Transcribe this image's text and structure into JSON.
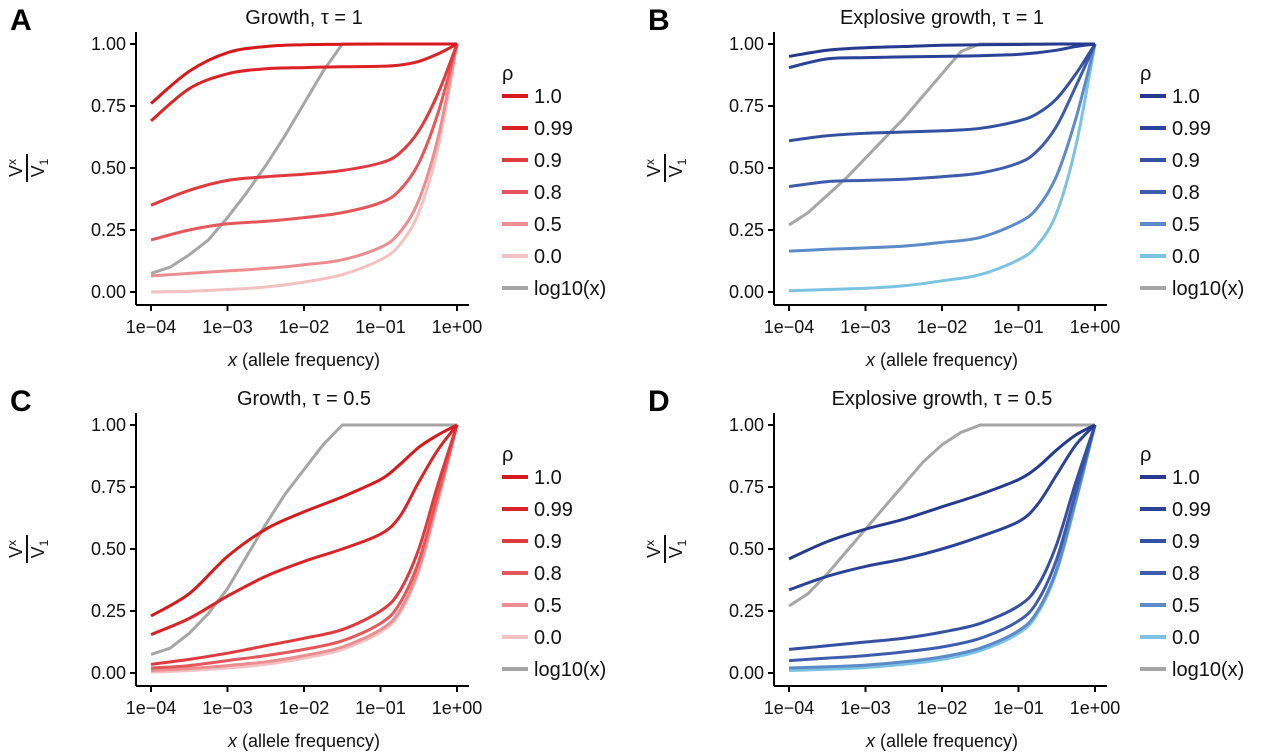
{
  "chart_data": [
    {
      "type": "line",
      "panel_label": "A",
      "title": "Growth, τ = 1",
      "xlabel_italic": "x",
      "xlabel_rest": " (allele frequency)",
      "ylabel_num": "V",
      "ylabel_num_sub": "x",
      "ylabel_den": "V",
      "ylabel_den_sub": "1",
      "xscale": "log10",
      "xlim": [
        0.0001,
        1
      ],
      "ylim": [
        0,
        1
      ],
      "xticks": [
        0.0001,
        0.001,
        0.01,
        0.1,
        1
      ],
      "xtick_labels": [
        "1e−04",
        "1e−03",
        "1e−02",
        "1e−01",
        "1e+00"
      ],
      "yticks": [
        0,
        0.25,
        0.5,
        0.75,
        1
      ],
      "ytick_labels": [
        "0.00",
        "0.25",
        "0.50",
        "0.75",
        "1.00"
      ],
      "legend_title": "ρ",
      "legend_position": "right",
      "x_log10": [
        -4,
        -3.5,
        -3,
        -2.5,
        -2,
        -1.5,
        -1,
        -0.75,
        -0.5,
        -0.25,
        0
      ],
      "series": [
        {
          "name": "1.0",
          "color": "#d7191c",
          "values": [
            0.76,
            0.89,
            0.965,
            0.99,
            0.997,
            0.999,
            1.0,
            1.0,
            1.0,
            1.0,
            1.0
          ]
        },
        {
          "name": "0.99",
          "color": "#dc2226",
          "values": [
            0.69,
            0.82,
            0.88,
            0.9,
            0.905,
            0.908,
            0.91,
            0.915,
            0.93,
            0.96,
            1.0
          ]
        },
        {
          "name": "0.9",
          "color": "#e03a3e",
          "values": [
            0.35,
            0.41,
            0.45,
            0.465,
            0.475,
            0.49,
            0.52,
            0.56,
            0.65,
            0.8,
            1.0
          ]
        },
        {
          "name": "0.8",
          "color": "#e5575a",
          "values": [
            0.21,
            0.25,
            0.275,
            0.285,
            0.3,
            0.32,
            0.36,
            0.41,
            0.52,
            0.72,
            1.0
          ]
        },
        {
          "name": "0.5",
          "color": "#ec8d8f",
          "values": [
            0.065,
            0.075,
            0.085,
            0.095,
            0.11,
            0.13,
            0.18,
            0.24,
            0.37,
            0.62,
            1.0
          ]
        },
        {
          "name": "0.0",
          "color": "#f4c1c2",
          "values": [
            0.0,
            0.003,
            0.01,
            0.02,
            0.04,
            0.07,
            0.13,
            0.19,
            0.32,
            0.58,
            1.0
          ]
        },
        {
          "name": "log10(x)",
          "color": "#a6a6a6",
          "x_log10": [
            -4,
            -3.75,
            -3.5,
            -3.25,
            -3,
            -2.75,
            -2.5,
            -2.25,
            -2,
            -1.75,
            -1.5,
            0
          ],
          "values": [
            0.075,
            0.1,
            0.15,
            0.21,
            0.3,
            0.4,
            0.51,
            0.63,
            0.76,
            0.89,
            1.0,
            1.0
          ]
        }
      ]
    },
    {
      "type": "line",
      "panel_label": "B",
      "title": "Explosive growth, τ = 1",
      "xlabel_italic": "x",
      "xlabel_rest": " (allele frequency)",
      "ylabel_num": "V",
      "ylabel_num_sub": "x",
      "ylabel_den": "V",
      "ylabel_den_sub": "1",
      "xscale": "log10",
      "xlim": [
        0.0001,
        1
      ],
      "ylim": [
        0,
        1
      ],
      "xticks": [
        0.0001,
        0.001,
        0.01,
        0.1,
        1
      ],
      "xtick_labels": [
        "1e−04",
        "1e−03",
        "1e−02",
        "1e−01",
        "1e+00"
      ],
      "yticks": [
        0,
        0.25,
        0.5,
        0.75,
        1
      ],
      "ytick_labels": [
        "0.00",
        "0.25",
        "0.50",
        "0.75",
        "1.00"
      ],
      "legend_title": "ρ",
      "legend_position": "right",
      "x_log10": [
        -4,
        -3.5,
        -3,
        -2.5,
        -2,
        -1.5,
        -1,
        -0.75,
        -0.5,
        -0.25,
        0
      ],
      "series": [
        {
          "name": "1.0",
          "color": "#253a8f",
          "values": [
            0.95,
            0.975,
            0.985,
            0.99,
            0.995,
            0.997,
            0.998,
            0.999,
            1.0,
            1.0,
            1.0
          ]
        },
        {
          "name": "0.99",
          "color": "#2a4298",
          "values": [
            0.905,
            0.94,
            0.945,
            0.948,
            0.95,
            0.953,
            0.958,
            0.965,
            0.975,
            0.99,
            1.0
          ]
        },
        {
          "name": "0.9",
          "color": "#3350a3",
          "values": [
            0.61,
            0.63,
            0.64,
            0.645,
            0.65,
            0.66,
            0.69,
            0.72,
            0.78,
            0.88,
            1.0
          ]
        },
        {
          "name": "0.8",
          "color": "#3d5cae",
          "values": [
            0.425,
            0.445,
            0.45,
            0.455,
            0.465,
            0.48,
            0.52,
            0.57,
            0.67,
            0.83,
            1.0
          ]
        },
        {
          "name": "0.5",
          "color": "#5b8bc9",
          "values": [
            0.165,
            0.172,
            0.178,
            0.185,
            0.2,
            0.22,
            0.28,
            0.34,
            0.47,
            0.7,
            1.0
          ]
        },
        {
          "name": "0.0",
          "color": "#7cc3e3",
          "values": [
            0.005,
            0.01,
            0.015,
            0.025,
            0.045,
            0.07,
            0.13,
            0.19,
            0.32,
            0.59,
            1.0
          ]
        },
        {
          "name": "log10(x)",
          "color": "#a6a6a6",
          "x_log10": [
            -4,
            -3.75,
            -3.5,
            -3.25,
            -3,
            -2.75,
            -2.5,
            -2.25,
            -2,
            -1.75,
            -1.5,
            0
          ],
          "values": [
            0.27,
            0.32,
            0.39,
            0.46,
            0.54,
            0.62,
            0.7,
            0.79,
            0.88,
            0.97,
            1.0,
            1.0
          ]
        }
      ]
    },
    {
      "type": "line",
      "panel_label": "C",
      "title": "Growth, τ = 0.5",
      "xlabel_italic": "x",
      "xlabel_rest": " (allele frequency)",
      "ylabel_num": "V",
      "ylabel_num_sub": "x",
      "ylabel_den": "V",
      "ylabel_den_sub": "1",
      "xscale": "log10",
      "xlim": [
        0.0001,
        1
      ],
      "ylim": [
        0,
        1
      ],
      "xticks": [
        0.0001,
        0.001,
        0.01,
        0.1,
        1
      ],
      "xtick_labels": [
        "1e−04",
        "1e−03",
        "1e−02",
        "1e−01",
        "1e+00"
      ],
      "yticks": [
        0,
        0.25,
        0.5,
        0.75,
        1
      ],
      "ytick_labels": [
        "0.00",
        "0.25",
        "0.50",
        "0.75",
        "1.00"
      ],
      "legend_title": "ρ",
      "legend_position": "right",
      "x_log10": [
        -4,
        -3.5,
        -3,
        -2.5,
        -2,
        -1.5,
        -1,
        -0.75,
        -0.5,
        -0.25,
        0
      ],
      "series": [
        {
          "name": "1.0",
          "color": "#d7191c",
          "values": [
            0.23,
            0.32,
            0.47,
            0.58,
            0.65,
            0.71,
            0.78,
            0.84,
            0.91,
            0.96,
            1.0
          ]
        },
        {
          "name": "0.99",
          "color": "#dc2226",
          "values": [
            0.155,
            0.22,
            0.31,
            0.39,
            0.45,
            0.5,
            0.56,
            0.63,
            0.77,
            0.9,
            1.0
          ]
        },
        {
          "name": "0.9",
          "color": "#e03a3e",
          "values": [
            0.035,
            0.055,
            0.08,
            0.11,
            0.14,
            0.175,
            0.25,
            0.33,
            0.5,
            0.76,
            1.0
          ]
        },
        {
          "name": "0.8",
          "color": "#e5575a",
          "values": [
            0.02,
            0.03,
            0.05,
            0.07,
            0.095,
            0.13,
            0.2,
            0.28,
            0.45,
            0.72,
            1.0
          ]
        },
        {
          "name": "0.5",
          "color": "#ec8d8f",
          "values": [
            0.01,
            0.018,
            0.03,
            0.045,
            0.07,
            0.105,
            0.175,
            0.25,
            0.42,
            0.7,
            1.0
          ]
        },
        {
          "name": "0.0",
          "color": "#f4c1c2",
          "values": [
            0.003,
            0.01,
            0.02,
            0.035,
            0.06,
            0.095,
            0.165,
            0.24,
            0.41,
            0.69,
            1.0
          ]
        },
        {
          "name": "log10(x)",
          "color": "#a6a6a6",
          "x_log10": [
            -4,
            -3.75,
            -3.5,
            -3.25,
            -3,
            -2.75,
            -2.5,
            -2.25,
            -2,
            -1.75,
            -1.5,
            0
          ],
          "values": [
            0.075,
            0.1,
            0.16,
            0.24,
            0.34,
            0.47,
            0.6,
            0.72,
            0.82,
            0.92,
            1.0,
            1.0
          ]
        }
      ]
    },
    {
      "type": "line",
      "panel_label": "D",
      "title": "Explosive growth, τ = 0.5",
      "xlabel_italic": "x",
      "xlabel_rest": " (allele frequency)",
      "ylabel_num": "V",
      "ylabel_num_sub": "x",
      "ylabel_den": "V",
      "ylabel_den_sub": "1",
      "xscale": "log10",
      "xlim": [
        0.0001,
        1
      ],
      "ylim": [
        0,
        1
      ],
      "xticks": [
        0.0001,
        0.001,
        0.01,
        0.1,
        1
      ],
      "xtick_labels": [
        "1e−04",
        "1e−03",
        "1e−02",
        "1e−01",
        "1e+00"
      ],
      "yticks": [
        0,
        0.25,
        0.5,
        0.75,
        1
      ],
      "ytick_labels": [
        "0.00",
        "0.25",
        "0.50",
        "0.75",
        "1.00"
      ],
      "legend_title": "ρ",
      "legend_position": "right",
      "x_log10": [
        -4,
        -3.5,
        -3,
        -2.5,
        -2,
        -1.5,
        -1,
        -0.75,
        -0.5,
        -0.25,
        0
      ],
      "series": [
        {
          "name": "1.0",
          "color": "#253a8f",
          "values": [
            0.46,
            0.53,
            0.58,
            0.62,
            0.67,
            0.72,
            0.78,
            0.83,
            0.9,
            0.96,
            1.0
          ]
        },
        {
          "name": "0.99",
          "color": "#2a4298",
          "values": [
            0.335,
            0.39,
            0.43,
            0.46,
            0.5,
            0.55,
            0.61,
            0.68,
            0.8,
            0.92,
            1.0
          ]
        },
        {
          "name": "0.9",
          "color": "#3350a3",
          "values": [
            0.095,
            0.11,
            0.125,
            0.14,
            0.165,
            0.2,
            0.27,
            0.35,
            0.52,
            0.77,
            1.0
          ]
        },
        {
          "name": "0.8",
          "color": "#3d5cae",
          "values": [
            0.05,
            0.06,
            0.07,
            0.085,
            0.105,
            0.14,
            0.21,
            0.29,
            0.46,
            0.73,
            1.0
          ]
        },
        {
          "name": "0.5",
          "color": "#5b8bc9",
          "values": [
            0.02,
            0.025,
            0.032,
            0.045,
            0.065,
            0.1,
            0.17,
            0.25,
            0.42,
            0.7,
            1.0
          ]
        },
        {
          "name": "0.0",
          "color": "#7cc3e3",
          "values": [
            0.01,
            0.015,
            0.022,
            0.035,
            0.055,
            0.09,
            0.16,
            0.24,
            0.41,
            0.69,
            1.0
          ]
        },
        {
          "name": "log10(x)",
          "color": "#a6a6a6",
          "x_log10": [
            -4,
            -3.75,
            -3.5,
            -3.25,
            -3,
            -2.75,
            -2.5,
            -2.25,
            -2,
            -1.75,
            -1.5,
            0
          ],
          "values": [
            0.27,
            0.32,
            0.4,
            0.49,
            0.58,
            0.67,
            0.76,
            0.85,
            0.92,
            0.97,
            1.0,
            1.0
          ]
        }
      ]
    }
  ]
}
